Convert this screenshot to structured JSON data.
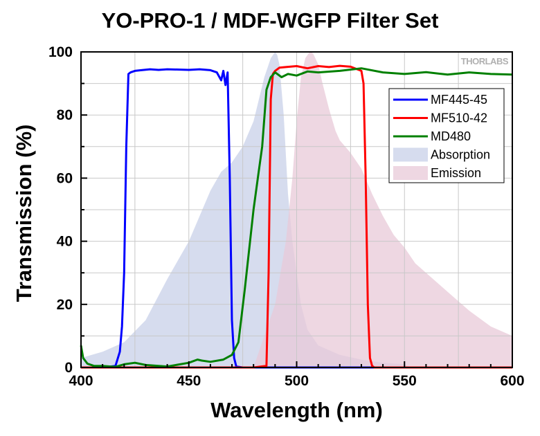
{
  "chart_data": {
    "type": "line",
    "title": "YO-PRO-1 / MDF-WGFP Filter Set",
    "xlabel": "Wavelength (nm)",
    "ylabel": "Transmission (%)",
    "xlim": [
      400,
      600
    ],
    "ylim": [
      0,
      100
    ],
    "x_ticks": [
      400,
      450,
      500,
      550,
      600
    ],
    "y_ticks": [
      0,
      20,
      40,
      60,
      80,
      100
    ],
    "grid": true,
    "legend_position": "right",
    "watermark": "THORLABS",
    "series": [
      {
        "name": "MF445-45",
        "kind": "line",
        "color": "#0000ff",
        "x": [
          400,
          410,
          416,
          418,
          419,
          420,
          421,
          422,
          423,
          425,
          428,
          432,
          436,
          440,
          445,
          450,
          455,
          460,
          463,
          465,
          466,
          467,
          468,
          469,
          470,
          471,
          472,
          475,
          480,
          490,
          500,
          520,
          540,
          560,
          580,
          600
        ],
        "y": [
          0,
          0,
          0.5,
          5,
          13,
          30,
          70,
          93,
          93.5,
          94,
          94.2,
          94.5,
          94.3,
          94.5,
          94.4,
          94.3,
          94.5,
          94.2,
          93.5,
          91,
          94,
          89.5,
          93.5,
          60,
          15,
          3,
          0.3,
          0,
          0,
          0,
          0,
          0,
          0,
          0,
          0,
          0
        ]
      },
      {
        "name": "MF510-42",
        "kind": "line",
        "color": "#ff0000",
        "x": [
          400,
          480,
          486,
          487,
          488,
          489,
          490,
          492,
          495,
          500,
          505,
          510,
          515,
          520,
          525,
          530,
          531,
          532,
          533,
          534,
          535,
          536,
          540,
          560,
          580,
          600
        ],
        "y": [
          0,
          0,
          0.5,
          30,
          85,
          93,
          94,
          95,
          95.2,
          95.5,
          94.8,
          95.5,
          95.2,
          95.6,
          95.3,
          94,
          90,
          60,
          20,
          3,
          0.5,
          0,
          0,
          0,
          0,
          0
        ]
      },
      {
        "name": "MD480",
        "kind": "line",
        "color": "#008000",
        "x": [
          400,
          401,
          403,
          406,
          410,
          416,
          420,
          425,
          430,
          440,
          450,
          454,
          456,
          460,
          466,
          470,
          473,
          476,
          480,
          482,
          484,
          486,
          488,
          490,
          493,
          496,
          500,
          505,
          510,
          520,
          530,
          540,
          550,
          560,
          570,
          580,
          590,
          600
        ],
        "y": [
          7,
          3,
          1.2,
          0.5,
          0.5,
          0.2,
          1,
          1.5,
          0.8,
          0.3,
          1.5,
          2.5,
          2.2,
          1.8,
          2.5,
          4,
          8,
          25,
          50,
          60,
          70,
          88,
          92,
          93.5,
          92,
          93,
          92.5,
          93.8,
          93.5,
          94,
          94.8,
          93.5,
          93,
          93.6,
          92.8,
          93.5,
          93,
          92.8
        ]
      },
      {
        "name": "Absorption",
        "kind": "area",
        "color": "#c8d0e8",
        "x": [
          400,
          410,
          420,
          430,
          440,
          450,
          460,
          465,
          470,
          475,
          480,
          485,
          488,
          490,
          491,
          492,
          494,
          496,
          498,
          500,
          502,
          505,
          510,
          520,
          530,
          540,
          550,
          553
        ],
        "y": [
          3,
          5,
          8,
          15,
          28,
          40,
          56,
          62,
          65,
          70,
          78,
          92,
          98,
          100,
          99,
          96,
          80,
          55,
          40,
          30,
          20,
          12,
          7,
          4,
          2.5,
          1.5,
          1,
          0
        ]
      },
      {
        "name": "Emission",
        "kind": "area",
        "color": "#e8cad8",
        "x": [
          480,
          481,
          483,
          485,
          490,
          495,
          498,
          500,
          502,
          504,
          506,
          507,
          508,
          510,
          512,
          515,
          518,
          520,
          525,
          530,
          535,
          540,
          545,
          550,
          555,
          560,
          570,
          580,
          590,
          600
        ],
        "y": [
          0,
          2,
          6,
          10,
          20,
          40,
          60,
          78,
          92,
          98,
          100,
          100,
          99,
          96,
          90,
          82,
          75,
          72,
          68,
          63,
          55,
          48,
          42,
          38,
          33,
          30,
          24,
          18,
          13,
          10
        ]
      }
    ]
  }
}
